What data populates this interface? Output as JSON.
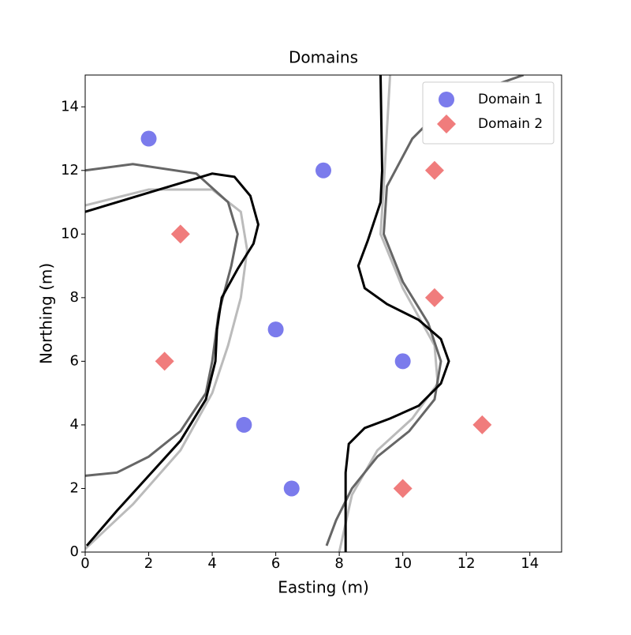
{
  "chart_data": {
    "type": "scatter",
    "title": "Domains",
    "xlabel": "Easting (m)",
    "ylabel": "Northing (m)",
    "xlim": [
      0,
      15
    ],
    "ylim": [
      0,
      15
    ],
    "xticks": [
      0,
      2,
      4,
      6,
      8,
      10,
      12,
      14
    ],
    "yticks": [
      0,
      2,
      4,
      6,
      8,
      10,
      12,
      14
    ],
    "legend": "upper right",
    "series": [
      {
        "name": "Domain 1",
        "color": "#7b7bec",
        "marker": "circle",
        "x": [
          2,
          7.5,
          6,
          10,
          5,
          6.5
        ],
        "y": [
          13,
          12,
          7,
          6,
          4,
          2
        ]
      },
      {
        "name": "Domain 2",
        "color": "#f07c7c",
        "marker": "diamond",
        "x": [
          3,
          11,
          2.5,
          11,
          12.5,
          10
        ],
        "y": [
          10,
          12,
          6,
          8,
          4,
          2
        ]
      },
      {
        "color": "#bbbbbb",
        "marker": "line",
        "x": [
          0,
          1.5,
          3,
          4,
          4.5,
          4.9,
          5.1,
          4.9,
          4,
          2,
          0
        ],
        "y": [
          0.1,
          1.5,
          3.2,
          5,
          6.5,
          8,
          9.5,
          10.7,
          11.4,
          11.4,
          10.9
        ]
      },
      {
        "color": "#bbbbbb",
        "marker": "line",
        "x": [
          8,
          8.4,
          9.2,
          10.3,
          11.1,
          11,
          10,
          9.3,
          9.4,
          9.6
        ],
        "y": [
          0,
          1.8,
          3.2,
          4.2,
          5.3,
          6.5,
          8.3,
          10,
          11.5,
          15
        ]
      },
      {
        "color": "#666666",
        "marker": "line",
        "x": [
          0,
          1,
          2,
          3,
          3.8,
          4,
          4.2,
          4.6,
          4.8,
          4.5,
          3.5,
          1.5,
          0
        ],
        "y": [
          2.4,
          2.5,
          3,
          3.8,
          5,
          6,
          7.5,
          9,
          10,
          11,
          11.9,
          12.2,
          12
        ]
      },
      {
        "color": "#666666",
        "marker": "line",
        "x": [
          7.6,
          7.9,
          8.4,
          9.2,
          10.2,
          11,
          11.2,
          10.8,
          10,
          9.4,
          9.5,
          10.3,
          11.5,
          13.8
        ],
        "y": [
          0.2,
          1,
          2,
          3,
          3.8,
          4.8,
          6,
          7.2,
          8.5,
          10,
          11.5,
          13,
          14.2,
          15
        ]
      },
      {
        "color": "#000000",
        "marker": "line",
        "x": [
          0.05,
          1,
          2,
          3,
          3.8,
          4.1,
          4.15,
          4.3,
          4.8,
          5.3,
          5.45,
          5.2,
          4.7,
          4,
          2,
          0
        ],
        "y": [
          0.2,
          1.3,
          2.4,
          3.5,
          4.8,
          6,
          7,
          8,
          8.9,
          9.7,
          10.3,
          11.2,
          11.8,
          11.9,
          11.3,
          10.7
        ]
      },
      {
        "color": "#000000",
        "marker": "line",
        "x": [
          8.2,
          8.2,
          8.3,
          8.8,
          9.6,
          10.5,
          11.2,
          11.45,
          11.2,
          10.5,
          9.5,
          8.8,
          8.6,
          8.9,
          9.3,
          9.35,
          9.3
        ],
        "y": [
          0,
          2.5,
          3.4,
          3.9,
          4.2,
          4.6,
          5.3,
          6,
          6.7,
          7.3,
          7.8,
          8.3,
          9,
          9.8,
          11,
          12,
          15
        ]
      }
    ]
  }
}
